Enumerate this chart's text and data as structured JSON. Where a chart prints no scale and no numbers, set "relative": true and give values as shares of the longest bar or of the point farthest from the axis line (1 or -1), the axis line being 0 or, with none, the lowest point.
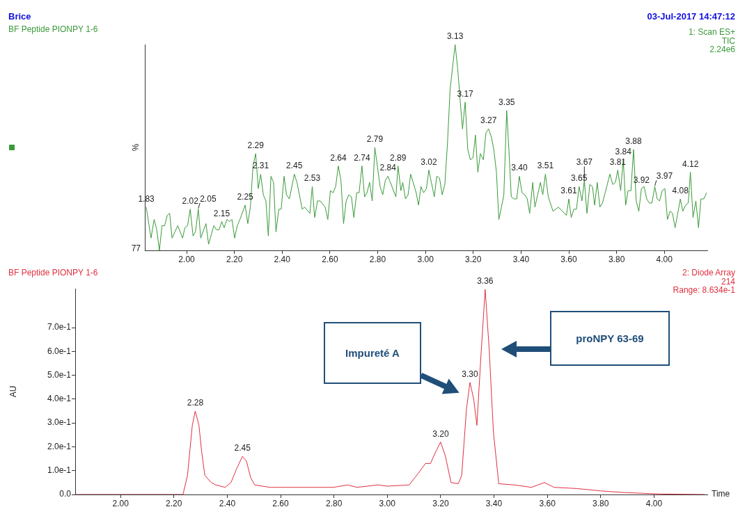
{
  "chart_data": [
    {
      "type": "other",
      "title": "Brice",
      "annotations": [
        "03-Jul-2017 14:47:12"
      ]
    },
    {
      "type": "line",
      "title": "BF Peptide PIONPY 1-6",
      "subtitle": "1: Scan ES+\nTIC\n2.24e6",
      "ylabel": "%",
      "relative": true,
      "color": "#3a9a3a",
      "annotations": [
        "77",
        {
          "text": "1.83",
          "x": 1.831,
          "y": 0.21
        },
        {
          "text": "2.02",
          "x": 2.015,
          "y": 0.2
        },
        {
          "text": "2.05",
          "x": 2.049,
          "y": 0.2
        },
        {
          "text": "2.15",
          "x": 2.147,
          "y": 0.14
        },
        {
          "text": "2.25",
          "x": 2.245,
          "y": 0.22
        },
        {
          "text": "2.29",
          "x": 2.289,
          "y": 0.47
        },
        {
          "text": "2.31",
          "x": 2.31,
          "y": 0.37
        },
        {
          "text": "2.45",
          "x": 2.451,
          "y": 0.37
        },
        {
          "text": "2.53",
          "x": 2.526,
          "y": 0.31
        },
        {
          "text": "2.64",
          "x": 2.635,
          "y": 0.41
        },
        {
          "text": "2.74",
          "x": 2.734,
          "y": 0.41
        },
        {
          "text": "2.79",
          "x": 2.788,
          "y": 0.5
        },
        {
          "text": "2.84",
          "x": 2.843,
          "y": 0.36
        },
        {
          "text": "2.89",
          "x": 2.885,
          "y": 0.41
        },
        {
          "text": "3.02",
          "x": 3.014,
          "y": 0.39
        },
        {
          "text": "3.13",
          "x": 3.124,
          "y": 1
        },
        {
          "text": "3.17",
          "x": 3.166,
          "y": 0.72
        },
        {
          "text": "3.27",
          "x": 3.264,
          "y": 0.59
        },
        {
          "text": "3.35",
          "x": 3.34,
          "y": 0.68
        },
        {
          "text": "3.40",
          "x": 3.393,
          "y": 0.36
        },
        {
          "text": "3.51",
          "x": 3.502,
          "y": 0.37
        },
        {
          "text": "3.61",
          "x": 3.6,
          "y": 0.25
        },
        {
          "text": "3.65",
          "x": 3.643,
          "y": 0.31
        },
        {
          "text": "3.67",
          "x": 3.665,
          "y": 0.34
        },
        {
          "text": "3.81",
          "x": 3.805,
          "y": 0.39
        },
        {
          "text": "3.84",
          "x": 3.828,
          "y": 0.44
        },
        {
          "text": "3.88",
          "x": 3.871,
          "y": 0.49
        },
        {
          "text": "3.92",
          "x": 3.904,
          "y": 0.3
        },
        {
          "text": "3.97",
          "x": 3.96,
          "y": 0.31
        },
        {
          "text": "4.08",
          "x": 4.067,
          "y": 0.25
        },
        {
          "text": "4.12",
          "x": 4.109,
          "y": 0.38
        }
      ],
      "xlim": [
        1.825,
        4.18
      ],
      "xticks": [
        {
          "value": 2,
          "label": "2.00"
        },
        {
          "value": 2.2,
          "label": "2.20"
        },
        {
          "value": 2.4,
          "label": "2.40"
        },
        {
          "value": 2.6,
          "label": "2.60"
        },
        {
          "value": 2.8,
          "label": "2.80"
        },
        {
          "value": 3,
          "label": "3.00"
        },
        {
          "value": 3.2,
          "label": "3.20"
        },
        {
          "value": 3.4,
          "label": "3.40"
        },
        {
          "value": 3.6,
          "label": "3.60"
        },
        {
          "value": 3.8,
          "label": "3.80"
        },
        {
          "value": 4,
          "label": "4.00"
        }
      ],
      "x": [
        1.831,
        1.851,
        1.864,
        1.875,
        1.886,
        1.897,
        1.908,
        1.919,
        1.929,
        1.939,
        1.963,
        1.983,
        1.993,
        2.004,
        2.015,
        2.027,
        2.037,
        2.049,
        2.059,
        2.081,
        2.092,
        2.114,
        2.125,
        2.136,
        2.147,
        2.157,
        2.169,
        2.179,
        2.19,
        2.201,
        2.212,
        2.223,
        2.245,
        2.256,
        2.267,
        2.278,
        2.289,
        2.3,
        2.31,
        2.321,
        2.332,
        2.342,
        2.353,
        2.364,
        2.374,
        2.386,
        2.396,
        2.408,
        2.418,
        2.43,
        2.451,
        2.462,
        2.484,
        2.494,
        2.516,
        2.526,
        2.536,
        2.548,
        2.56,
        2.58,
        2.591,
        2.602,
        2.613,
        2.624,
        2.635,
        2.646,
        2.657,
        2.668,
        2.679,
        2.69,
        2.7,
        2.712,
        2.722,
        2.734,
        2.745,
        2.755,
        2.766,
        2.777,
        2.788,
        2.81,
        2.821,
        2.832,
        2.843,
        2.876,
        2.885,
        2.897,
        2.905,
        2.916,
        2.927,
        2.938,
        2.961,
        2.971,
        2.981,
        2.992,
        3.004,
        3.014,
        3.037,
        3.047,
        3.059,
        3.07,
        3.081,
        3.092,
        3.103,
        3.124,
        3.135,
        3.145,
        3.155,
        3.166,
        3.177,
        3.188,
        3.199,
        3.209,
        3.219,
        3.23,
        3.242,
        3.253,
        3.264,
        3.276,
        3.286,
        3.297,
        3.307,
        3.318,
        3.328,
        3.34,
        3.351,
        3.359,
        3.371,
        3.382,
        3.393,
        3.404,
        3.416,
        3.426,
        3.436,
        3.449,
        3.458,
        3.481,
        3.491,
        3.502,
        3.514,
        3.534,
        3.556,
        3.59,
        3.6,
        3.61,
        3.621,
        3.632,
        3.643,
        3.655,
        3.665,
        3.676,
        3.688,
        3.699,
        3.708,
        3.719,
        3.73,
        3.741,
        3.772,
        3.784,
        3.795,
        3.805,
        3.817,
        3.828,
        3.838,
        3.848,
        3.86,
        3.871,
        3.882,
        3.893,
        3.904,
        3.915,
        3.926,
        3.937,
        3.948,
        3.96,
        3.97,
        3.98,
        3.991,
        4.002,
        4.013,
        4.024,
        4.034,
        4.045,
        4.067,
        4.077,
        4.089,
        4.1,
        4.109,
        4.12,
        4.132,
        4.143,
        4.153,
        4.165,
        4.177
      ],
      "values": [
        0.21,
        0.06,
        0.15,
        0.1,
        0,
        0.12,
        0.12,
        0.17,
        0.18,
        0.06,
        0.12,
        0.06,
        0.11,
        0.12,
        0.2,
        0.07,
        0.09,
        0.2,
        0.06,
        0.13,
        0.03,
        0.12,
        0.1,
        0.1,
        0.14,
        0.11,
        0.15,
        0.14,
        0.15,
        0.06,
        0.12,
        0.15,
        0.22,
        0.13,
        0.21,
        0.41,
        0.47,
        0.3,
        0.37,
        0.27,
        0.24,
        0.07,
        0.36,
        0.33,
        0.09,
        0.2,
        0.2,
        0.36,
        0.27,
        0.25,
        0.37,
        0.33,
        0.2,
        0.21,
        0.18,
        0.31,
        0.16,
        0.24,
        0.24,
        0.21,
        0.15,
        0.29,
        0.28,
        0.31,
        0.41,
        0.34,
        0.13,
        0.24,
        0.27,
        0.26,
        0.16,
        0.28,
        0.28,
        0.41,
        0.26,
        0.28,
        0.33,
        0.24,
        0.5,
        0.31,
        0.27,
        0.34,
        0.36,
        0.26,
        0.41,
        0.29,
        0.33,
        0.25,
        0.27,
        0.37,
        0.28,
        0.22,
        0.31,
        0.28,
        0.3,
        0.39,
        0.26,
        0.36,
        0.35,
        0.27,
        0.32,
        0.52,
        0.78,
        1,
        0.88,
        0.73,
        0.59,
        0.72,
        0.49,
        0.44,
        0.45,
        0.56,
        0.38,
        0.47,
        0.44,
        0.57,
        0.59,
        0.55,
        0.49,
        0.38,
        0.15,
        0.21,
        0.27,
        0.68,
        0.45,
        0.26,
        0.25,
        0.25,
        0.36,
        0.28,
        0.27,
        0.25,
        0.18,
        0.33,
        0.21,
        0.33,
        0.27,
        0.37,
        0.26,
        0.19,
        0.21,
        0.17,
        0.25,
        0.16,
        0.2,
        0.2,
        0.31,
        0.24,
        0.34,
        0.18,
        0.32,
        0.31,
        0.22,
        0.33,
        0.21,
        0.23,
        0.37,
        0.32,
        0.33,
        0.39,
        0.29,
        0.44,
        0.22,
        0.29,
        0.29,
        0.49,
        0.24,
        0.19,
        0.3,
        0.31,
        0.25,
        0.23,
        0.23,
        0.31,
        0.25,
        0.24,
        0.29,
        0.3,
        0.15,
        0.19,
        0.18,
        0.11,
        0.25,
        0.19,
        0.22,
        0.23,
        0.38,
        0.16,
        0.24,
        0.11,
        0.25,
        0.25,
        0.28
      ]
    },
    {
      "type": "line",
      "title": "BF Peptide PIONPY 1-6",
      "subtitle": "2: Diode Array\n214\nRange: 8.634e-1",
      "xlabel": "Time",
      "ylabel": "AU",
      "color": "#e03040",
      "annotations": [
        {
          "text": "2.28",
          "x": 2.28,
          "y": 0.35
        },
        {
          "text": "2.45",
          "x": 2.457,
          "y": 0.16
        },
        {
          "text": "3.20",
          "x": 3.2,
          "y": 0.22
        },
        {
          "text": "3.30",
          "x": 3.31,
          "y": 0.47
        },
        {
          "text": "3.36",
          "x": 3.367,
          "y": 0.86
        },
        "Impureté A",
        "proNPY 63-69"
      ],
      "xlim": [
        1.83,
        4.2
      ],
      "ylim": [
        0,
        0.8634
      ],
      "xticks": [
        {
          "value": 2,
          "label": "2.00"
        },
        {
          "value": 2.2,
          "label": "2.20"
        },
        {
          "value": 2.4,
          "label": "2.40"
        },
        {
          "value": 2.6,
          "label": "2.60"
        },
        {
          "value": 2.8,
          "label": "2.80"
        },
        {
          "value": 3,
          "label": "3.00"
        },
        {
          "value": 3.2,
          "label": "3.20"
        },
        {
          "value": 3.4,
          "label": "3.40"
        },
        {
          "value": 3.6,
          "label": "3.60"
        },
        {
          "value": 3.8,
          "label": "3.80"
        },
        {
          "value": 4,
          "label": "4.00"
        }
      ],
      "yticks": [
        {
          "value": 0,
          "label": "0.0"
        },
        {
          "value": 0.1,
          "label": "1.0e-1"
        },
        {
          "value": 0.2,
          "label": "2.0e-1"
        },
        {
          "value": 0.3,
          "label": "3.0e-1"
        },
        {
          "value": 0.4,
          "label": "4.0e-1"
        },
        {
          "value": 0.5,
          "label": "5.0e-1"
        },
        {
          "value": 0.6,
          "label": "6.0e-1"
        },
        {
          "value": 0.7,
          "label": "7.0e-1"
        }
      ],
      "x": [
        1.83,
        2.234,
        2.251,
        2.269,
        2.28,
        2.294,
        2.304,
        2.316,
        2.34,
        2.357,
        2.392,
        2.414,
        2.436,
        2.457,
        2.472,
        2.488,
        2.503,
        2.56,
        2.692,
        2.798,
        2.851,
        2.886,
        2.965,
        3.001,
        3.082,
        3.117,
        3.143,
        3.162,
        3.182,
        3.2,
        3.218,
        3.239,
        3.266,
        3.279,
        3.297,
        3.31,
        3.324,
        3.336,
        3.351,
        3.367,
        3.382,
        3.398,
        3.418,
        3.477,
        3.54,
        3.589,
        3.625,
        3.71,
        3.8,
        3.89,
        4.024,
        4.19
      ],
      "values": [
        0,
        0,
        0.08,
        0.29,
        0.35,
        0.29,
        0.18,
        0.08,
        0.05,
        0.04,
        0.03,
        0.05,
        0.11,
        0.16,
        0.14,
        0.07,
        0.04,
        0.03,
        0.03,
        0.03,
        0.04,
        0.03,
        0.04,
        0.035,
        0.04,
        0.09,
        0.13,
        0.13,
        0.18,
        0.22,
        0.16,
        0.05,
        0.045,
        0.08,
        0.36,
        0.47,
        0.4,
        0.29,
        0.58,
        0.86,
        0.61,
        0.26,
        0.045,
        0.04,
        0.03,
        0.05,
        0.03,
        0.025,
        0.015,
        0.008,
        0.002,
        0
      ]
    }
  ]
}
